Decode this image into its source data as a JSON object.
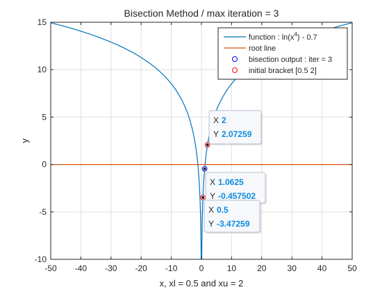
{
  "chart_data": {
    "type": "line",
    "title": "Bisection Method / max iteration = 3",
    "xlabel": "x, xl = 0.5 and xu = 2",
    "ylabel": "y",
    "xlim": [
      -50,
      50
    ],
    "ylim": [
      -10,
      15
    ],
    "xticks": [
      -50,
      -40,
      -30,
      -20,
      -10,
      0,
      10,
      20,
      30,
      40,
      50
    ],
    "yticks": [
      -10,
      -5,
      0,
      5,
      10,
      15
    ],
    "grid": true,
    "legend_location": "top-right",
    "series": [
      {
        "name": "function : ln(x⁴) - 0.7",
        "kind": "line",
        "formula": "ln(x^4) - 0.7",
        "color": "#0072bd"
      },
      {
        "name": "root line",
        "kind": "line",
        "y": 0,
        "color": "#d95319"
      },
      {
        "name": "bisection output : iter = 3",
        "kind": "marker",
        "marker_color": "#0000ff",
        "points": [
          {
            "x": 1.0625,
            "y": -0.457502
          }
        ]
      },
      {
        "name": "initial bracket [0.5 2]",
        "kind": "marker",
        "marker_color": "#ff0000",
        "points": [
          {
            "x": 0.5,
            "y": -3.47259
          },
          {
            "x": 2,
            "y": 2.07259
          }
        ]
      }
    ],
    "datatips": [
      {
        "x_label": "X",
        "x_value": "2",
        "y_label": "Y",
        "y_value": "2.07259"
      },
      {
        "x_label": "X",
        "x_value": "1.0625",
        "y_label": "Y",
        "y_value": "-0.457502"
      },
      {
        "x_label": "X",
        "x_value": "0.5",
        "y_label": "Y",
        "y_value": "-3.47259"
      }
    ],
    "colors": {
      "axis": "#262626",
      "grid": "#dfdfdf",
      "function": "#0072bd",
      "root_line": "#d95319",
      "bisection_marker": "#0000ff",
      "bracket_marker": "#ff0000",
      "tip_value": "#0a8ce0"
    }
  }
}
